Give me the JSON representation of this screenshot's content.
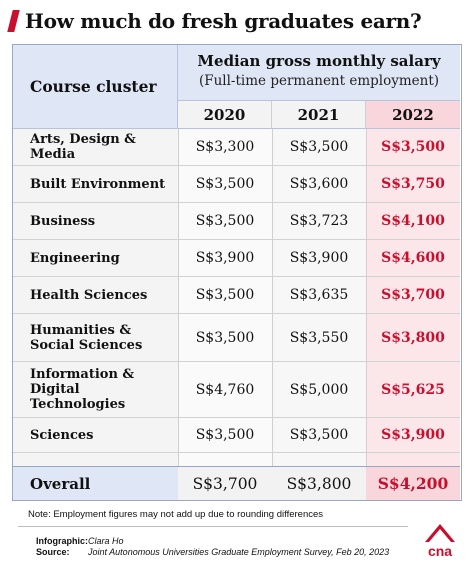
{
  "title": "How much do fresh graduates earn?",
  "header": {
    "left": "Course cluster",
    "group_line1": "Median gross monthly salary",
    "group_line2": "(Full-time permanent employment)",
    "years": [
      "2020",
      "2021",
      "2022"
    ]
  },
  "chart_data": {
    "type": "table",
    "title": "How much do fresh graduates earn?",
    "columns": [
      "2020",
      "2021",
      "2022"
    ],
    "rows": [
      {
        "label": "Arts, Design & Media",
        "values": [
          "S$3,300",
          "S$3,500",
          "S$3,500"
        ]
      },
      {
        "label": "Built Environment",
        "values": [
          "S$3,500",
          "S$3,600",
          "S$3,750"
        ]
      },
      {
        "label": "Business",
        "values": [
          "S$3,500",
          "S$3,723",
          "S$4,100"
        ]
      },
      {
        "label": "Engineering",
        "values": [
          "S$3,900",
          "S$3,900",
          "S$4,600"
        ]
      },
      {
        "label": "Health Sciences",
        "values": [
          "S$3,500",
          "S$3,635",
          "S$3,700"
        ]
      },
      {
        "label": "Humanities & Social Sciences",
        "values": [
          "S$3,500",
          "S$3,550",
          "S$3,800"
        ]
      },
      {
        "label": "Information & Digital Technologies",
        "values": [
          "S$4,760",
          "S$5,000",
          "S$5,625"
        ]
      },
      {
        "label": "Sciences",
        "values": [
          "S$3,500",
          "S$3,500",
          "S$3,900"
        ]
      }
    ],
    "total": {
      "label": "Overall",
      "values": [
        "S$3,700",
        "S$3,800",
        "S$4,200"
      ]
    },
    "highlight_color": "#c8102e"
  },
  "note": "Note: Employment figures may not add up due to rounding differences",
  "credits": {
    "infographic_label": "Infographic:",
    "infographic_value": "Clara Ho",
    "source_label": "Source:",
    "source_value": "Joint Autonomous Universities Graduate Employment Survey, Feb 20, 2023"
  },
  "logo_text": "cna",
  "colors": {
    "accent": "#c8102e",
    "header_blue": "#dfe6f6",
    "pink": "#f8d6db"
  }
}
